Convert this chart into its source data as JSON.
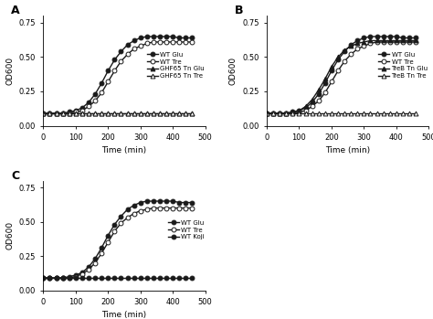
{
  "title_A": "A",
  "title_B": "B",
  "title_C": "C",
  "xlabel": "Time (min)",
  "ylabel": "OD600",
  "xlim": [
    0,
    500
  ],
  "ylim": [
    0.0,
    0.8
  ],
  "yticks": [
    0.0,
    0.25,
    0.5,
    0.75
  ],
  "xticks": [
    0,
    100,
    200,
    300,
    400,
    500
  ],
  "time": [
    0,
    20,
    40,
    60,
    80,
    100,
    120,
    140,
    160,
    180,
    200,
    220,
    240,
    260,
    280,
    300,
    320,
    340,
    360,
    380,
    400,
    420,
    440,
    460
  ],
  "panel_A": {
    "WT_Glu": [
      0.09,
      0.09,
      0.09,
      0.09,
      0.1,
      0.11,
      0.13,
      0.17,
      0.23,
      0.31,
      0.4,
      0.48,
      0.54,
      0.59,
      0.62,
      0.64,
      0.65,
      0.65,
      0.65,
      0.65,
      0.65,
      0.64,
      0.64,
      0.64
    ],
    "WT_Tre": [
      0.09,
      0.09,
      0.09,
      0.09,
      0.09,
      0.1,
      0.11,
      0.14,
      0.18,
      0.24,
      0.32,
      0.4,
      0.47,
      0.52,
      0.56,
      0.58,
      0.6,
      0.61,
      0.61,
      0.61,
      0.61,
      0.61,
      0.61,
      0.61
    ],
    "GHF65_Tn_Glu": [
      0.09,
      0.09,
      0.09,
      0.09,
      0.09,
      0.09,
      0.09,
      0.09,
      0.09,
      0.09,
      0.09,
      0.09,
      0.09,
      0.09,
      0.09,
      0.09,
      0.09,
      0.09,
      0.09,
      0.09,
      0.09,
      0.09,
      0.09,
      0.09
    ],
    "GHF65_Tn_Tre": [
      0.09,
      0.09,
      0.09,
      0.09,
      0.09,
      0.09,
      0.09,
      0.09,
      0.09,
      0.09,
      0.09,
      0.09,
      0.09,
      0.09,
      0.09,
      0.09,
      0.09,
      0.09,
      0.09,
      0.09,
      0.09,
      0.09,
      0.09,
      0.09
    ]
  },
  "panel_B": {
    "WT_Glu": [
      0.09,
      0.09,
      0.09,
      0.09,
      0.1,
      0.11,
      0.13,
      0.17,
      0.23,
      0.31,
      0.4,
      0.48,
      0.54,
      0.59,
      0.62,
      0.64,
      0.65,
      0.65,
      0.65,
      0.65,
      0.65,
      0.64,
      0.64,
      0.64
    ],
    "WT_Tre": [
      0.09,
      0.09,
      0.09,
      0.09,
      0.09,
      0.1,
      0.11,
      0.14,
      0.18,
      0.24,
      0.32,
      0.4,
      0.47,
      0.52,
      0.56,
      0.58,
      0.6,
      0.61,
      0.61,
      0.61,
      0.61,
      0.61,
      0.61,
      0.61
    ],
    "TreB_Tn_Glu": [
      0.09,
      0.09,
      0.09,
      0.09,
      0.1,
      0.11,
      0.14,
      0.19,
      0.26,
      0.34,
      0.43,
      0.5,
      0.55,
      0.58,
      0.6,
      0.61,
      0.62,
      0.62,
      0.62,
      0.62,
      0.62,
      0.62,
      0.62,
      0.62
    ],
    "TreB_Tn_Tre": [
      0.09,
      0.09,
      0.09,
      0.09,
      0.09,
      0.09,
      0.09,
      0.09,
      0.09,
      0.09,
      0.09,
      0.09,
      0.09,
      0.09,
      0.09,
      0.09,
      0.09,
      0.09,
      0.09,
      0.09,
      0.09,
      0.09,
      0.09,
      0.09
    ]
  },
  "panel_C": {
    "WT_Glu": [
      0.09,
      0.09,
      0.09,
      0.09,
      0.1,
      0.11,
      0.13,
      0.17,
      0.23,
      0.31,
      0.4,
      0.48,
      0.54,
      0.59,
      0.62,
      0.64,
      0.65,
      0.65,
      0.65,
      0.65,
      0.65,
      0.64,
      0.64,
      0.64
    ],
    "WT_Tre": [
      0.09,
      0.09,
      0.09,
      0.09,
      0.09,
      0.1,
      0.12,
      0.15,
      0.2,
      0.27,
      0.35,
      0.43,
      0.49,
      0.53,
      0.56,
      0.58,
      0.59,
      0.6,
      0.6,
      0.6,
      0.6,
      0.6,
      0.6,
      0.6
    ],
    "WT_Koji": [
      0.09,
      0.09,
      0.09,
      0.09,
      0.09,
      0.09,
      0.09,
      0.09,
      0.09,
      0.09,
      0.09,
      0.09,
      0.09,
      0.09,
      0.09,
      0.09,
      0.09,
      0.09,
      0.09,
      0.09,
      0.09,
      0.09,
      0.09,
      0.09
    ]
  },
  "legend_A": [
    "WT Glu",
    "WT Tre",
    "GHF65 Tn Glu",
    "GHF65 Tn Tre"
  ],
  "legend_B": [
    "WT Glu",
    "WT Tre",
    "TreB Tn Glu",
    "TreB Tn Tre"
  ],
  "legend_C": [
    "WT Glu",
    "WT Tre",
    "WT Koji"
  ],
  "line_color": "#1a1a1a",
  "marker_size": 3.5,
  "linewidth": 1.0
}
